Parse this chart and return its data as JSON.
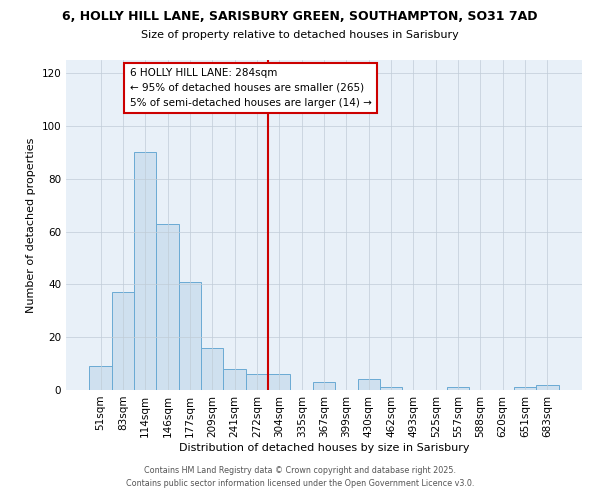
{
  "title": "6, HOLLY HILL LANE, SARISBURY GREEN, SOUTHAMPTON, SO31 7AD",
  "subtitle": "Size of property relative to detached houses in Sarisbury",
  "xlabel": "Distribution of detached houses by size in Sarisbury",
  "ylabel": "Number of detached properties",
  "bar_color": "#cfe0ef",
  "bar_edge_color": "#6aaad4",
  "categories": [
    "51sqm",
    "83sqm",
    "114sqm",
    "146sqm",
    "177sqm",
    "209sqm",
    "241sqm",
    "272sqm",
    "304sqm",
    "335sqm",
    "367sqm",
    "399sqm",
    "430sqm",
    "462sqm",
    "493sqm",
    "525sqm",
    "557sqm",
    "588sqm",
    "620sqm",
    "651sqm",
    "683sqm"
  ],
  "values": [
    9,
    37,
    90,
    63,
    41,
    16,
    8,
    6,
    6,
    0,
    3,
    0,
    4,
    1,
    0,
    0,
    1,
    0,
    0,
    1,
    2
  ],
  "vline_x": 7.5,
  "vline_color": "#cc0000",
  "ylim": [
    0,
    125
  ],
  "yticks": [
    0,
    20,
    40,
    60,
    80,
    100,
    120
  ],
  "annotation_title": "6 HOLLY HILL LANE: 284sqm",
  "annotation_line1": "← 95% of detached houses are smaller (265)",
  "annotation_line2": "5% of semi-detached houses are larger (14) →",
  "footnote1": "Contains HM Land Registry data © Crown copyright and database right 2025.",
  "footnote2": "Contains public sector information licensed under the Open Government Licence v3.0.",
  "background_color": "#ffffff",
  "plot_bg_color": "#e8f0f8",
  "grid_color": "#c0ccd8"
}
